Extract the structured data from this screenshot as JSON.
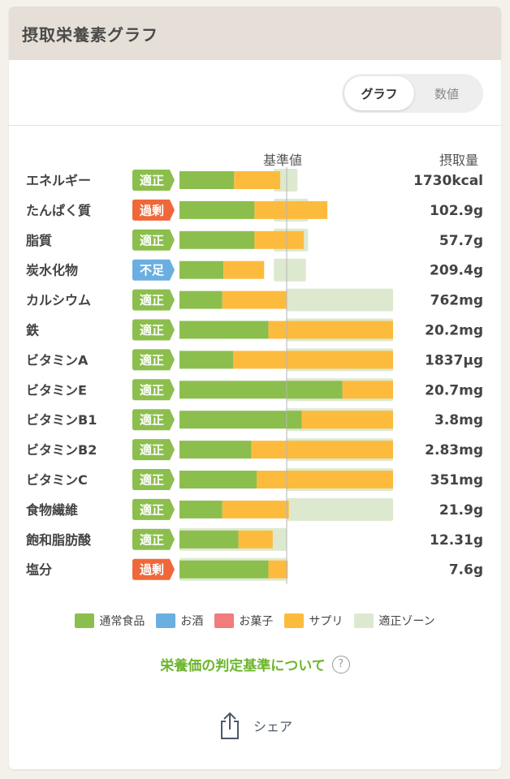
{
  "header": {
    "title": "摂取栄養素グラフ"
  },
  "view_toggle": {
    "graph": "グラフ",
    "values": "数値"
  },
  "columns": {
    "baseline": "基準値",
    "intake": "摂取量"
  },
  "colors": {
    "food": "#8cbe4e",
    "alcohol": "#6aafe0",
    "snack": "#f27c7c",
    "supplement": "#fdbb3e",
    "zone": "#dde9cf",
    "badge_ok": "#8cbe4e",
    "badge_over": "#f0683a",
    "badge_under": "#6aafe0"
  },
  "chart_data": {
    "type": "bar",
    "orientation": "horizontal",
    "stacked": true,
    "baseline_pct": 100,
    "axis_max_pct": 200,
    "categories": [
      "エネルギー",
      "たんぱく質",
      "脂質",
      "炭水化物",
      "カルシウム",
      "鉄",
      "ビタミンA",
      "ビタミンE",
      "ビタミンB1",
      "ビタミンB2",
      "ビタミンC",
      "食物繊維",
      "飽和脂肪酸",
      "塩分"
    ],
    "intake_labels": [
      "1730kcal",
      "102.9g",
      "57.7g",
      "209.4g",
      "762mg",
      "20.2mg",
      "1837μg",
      "20.7mg",
      "3.8mg",
      "2.83mg",
      "351mg",
      "21.9g",
      "12.31g",
      "7.6g"
    ],
    "judgements": [
      "適正",
      "過剰",
      "適正",
      "不足",
      "適正",
      "適正",
      "適正",
      "適正",
      "適正",
      "適正",
      "適正",
      "適正",
      "適正",
      "過剰"
    ],
    "judgement_types": [
      "ok",
      "over",
      "ok",
      "under",
      "ok",
      "ok",
      "ok",
      "ok",
      "ok",
      "ok",
      "ok",
      "ok",
      "ok",
      "over"
    ],
    "series": [
      {
        "name": "通常食品",
        "values": [
          51,
          70,
          70,
          41,
          40,
          83,
          50,
          152,
          114,
          67,
          72,
          40,
          55,
          83
        ]
      },
      {
        "name": "お酒",
        "values": [
          0,
          0,
          0,
          0,
          0,
          0,
          0,
          0,
          0,
          0,
          0,
          0,
          0,
          0
        ]
      },
      {
        "name": "お菓子",
        "values": [
          0,
          0,
          0,
          0,
          0,
          0,
          0,
          0,
          0,
          0,
          0,
          0,
          0,
          0
        ]
      },
      {
        "name": "サプリ",
        "values": [
          43,
          68,
          46,
          38,
          60,
          117,
          150,
          48,
          86,
          133,
          128,
          62,
          32,
          18
        ]
      }
    ],
    "zones": [
      [
        88,
        110
      ],
      [
        88,
        120
      ],
      [
        88,
        120
      ],
      [
        88,
        118
      ],
      [
        100,
        200
      ],
      [
        100,
        200
      ],
      [
        100,
        200
      ],
      [
        100,
        200
      ],
      [
        100,
        200
      ],
      [
        100,
        200
      ],
      [
        100,
        200
      ],
      [
        100,
        200
      ],
      [
        0,
        100
      ],
      [
        0,
        100
      ]
    ],
    "legend": [
      "通常食品",
      "お酒",
      "お菓子",
      "サプリ",
      "適正ゾーン"
    ]
  },
  "info_link": {
    "label": "栄養価の判定基準について",
    "help": "?"
  },
  "share": {
    "label": "シェア"
  }
}
